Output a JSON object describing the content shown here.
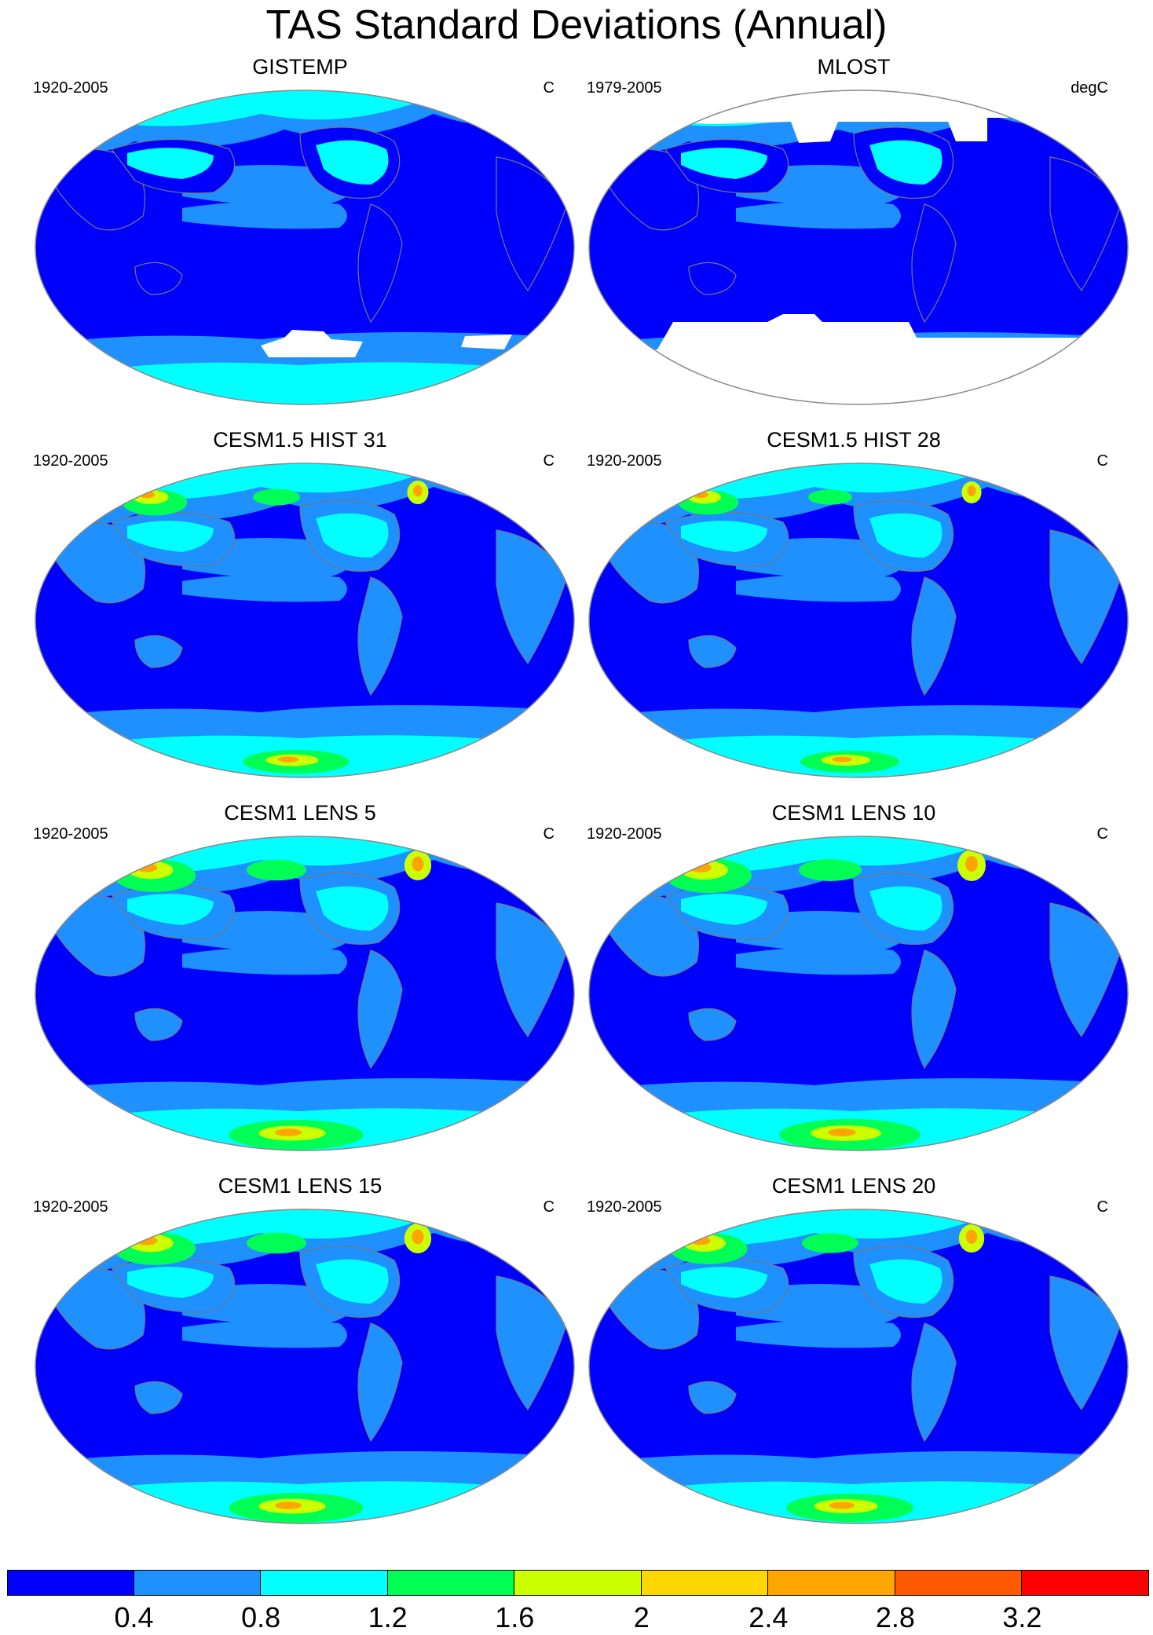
{
  "title": "TAS Standard Deviations (Annual)",
  "panels": [
    {
      "name": "GISTEMP",
      "period": "1920-2005",
      "units": "C",
      "missing": "antarctic-patches"
    },
    {
      "name": "MLOST",
      "period": "1979-2005",
      "units": "degC",
      "missing": "polar"
    },
    {
      "name": "CESM1.5 HIST 31",
      "period": "1920-2005",
      "units": "C",
      "intensity": 0.75
    },
    {
      "name": "CESM1.5 HIST 28",
      "period": "1920-2005",
      "units": "C",
      "intensity": 0.7
    },
    {
      "name": "CESM1 LENS 5",
      "period": "1920-2005",
      "units": "C",
      "intensity": 0.95
    },
    {
      "name": "CESM1 LENS 10",
      "period": "1920-2005",
      "units": "C",
      "intensity": 1.0
    },
    {
      "name": "CESM1 LENS 15",
      "period": "1920-2005",
      "units": "C",
      "intensity": 0.95
    },
    {
      "name": "CESM1 LENS 20",
      "period": "1920-2005",
      "units": "C",
      "intensity": 0.9
    }
  ],
  "colorbar": {
    "colors": [
      "#0000ff",
      "#1e90ff",
      "#00ffff",
      "#00ff55",
      "#ccff00",
      "#ffd700",
      "#ffa500",
      "#ff5a00",
      "#ff0000"
    ],
    "labels": [
      "0.4",
      "0.8",
      "1.2",
      "1.6",
      "2",
      "2.4",
      "2.8",
      "3.2"
    ]
  },
  "legend_colors": {
    "ocean": "#0000ff",
    "mid": "#1e90ff",
    "high": "#00ffff",
    "missing": "#ffffff",
    "coast": "#777777"
  }
}
